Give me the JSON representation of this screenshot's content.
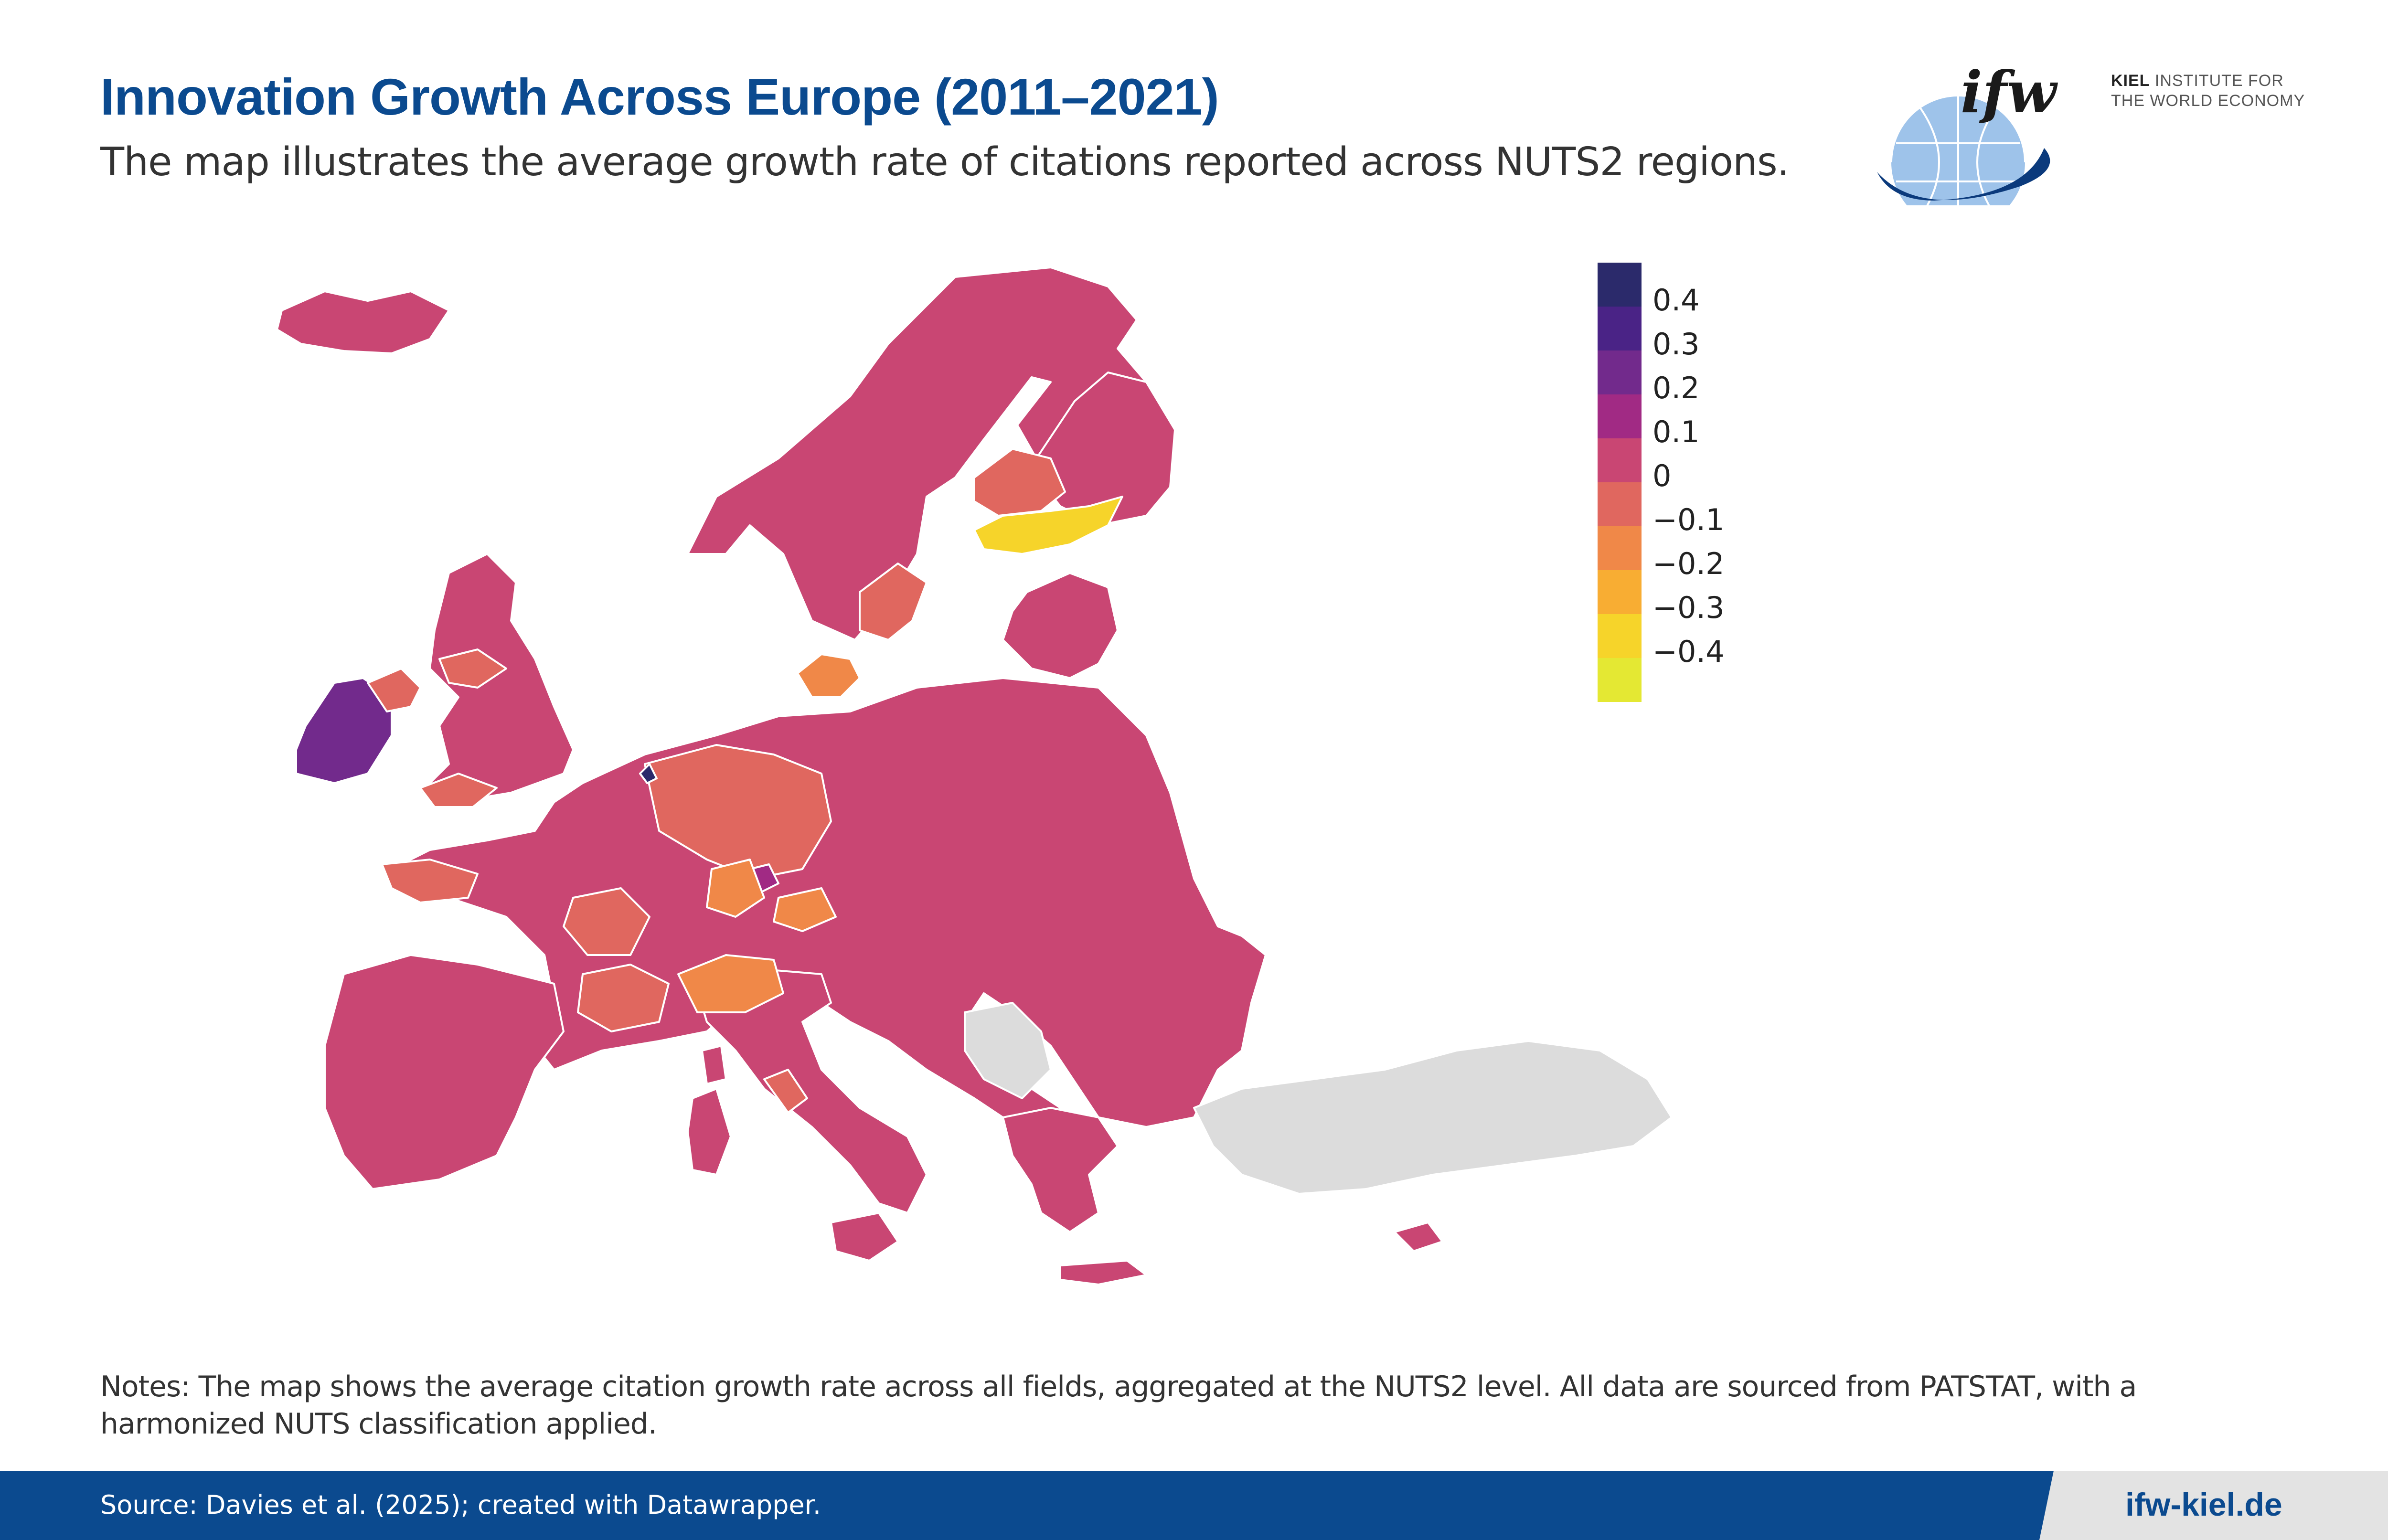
{
  "header": {
    "title": "Innovation Growth Across Europe (2011–2021)",
    "subtitle": "The map illustrates the average growth rate of citations reported across NUTS2 regions."
  },
  "logo": {
    "mark": "ifw",
    "line1_bold": "KIEL",
    "line1_rest": "INSTITUTE FOR",
    "line2": "THE WORLD ECONOMY",
    "icon": "globe-icon"
  },
  "legend": {
    "items": [
      {
        "label": "0.4",
        "color": "#2b2a6b"
      },
      {
        "label": "0.3",
        "color": "#4a2386"
      },
      {
        "label": "0.2",
        "color": "#722a8c"
      },
      {
        "label": "0.1",
        "color": "#a12a84"
      },
      {
        "label": "0",
        "color": "#c94673"
      },
      {
        "label": "−0.1",
        "color": "#e0675f"
      },
      {
        "label": "−0.2",
        "color": "#f08848"
      },
      {
        "label": "−0.3",
        "color": "#f8ad33"
      },
      {
        "label": "−0.4",
        "color": "#f6d42a"
      },
      {
        "label": "",
        "color": "#e4e833"
      }
    ],
    "no_data_color": "#dcdcdc"
  },
  "map": {
    "regions_shown": [
      {
        "name": "Iceland",
        "value": 0
      },
      {
        "name": "Norway",
        "value": 0
      },
      {
        "name": "Sweden",
        "value": 0
      },
      {
        "name": "Finland",
        "value": 0
      },
      {
        "name": "Finland (central)",
        "value": -0.1
      },
      {
        "name": "Finland (south)",
        "value": -0.4
      },
      {
        "name": "Sweden (south-east)",
        "value": -0.1
      },
      {
        "name": "Denmark",
        "value": -0.2
      },
      {
        "name": "Ireland",
        "value": 0.2
      },
      {
        "name": "Northern Ireland",
        "value": -0.1
      },
      {
        "name": "United Kingdom",
        "value": 0
      },
      {
        "name": "Netherlands (region)",
        "value": 0.4
      },
      {
        "name": "Baltic states",
        "value": 0
      },
      {
        "name": "Germany",
        "value": -0.1
      },
      {
        "name": "Brittany",
        "value": -0.1
      },
      {
        "name": "France",
        "value": 0
      },
      {
        "name": "Rhône-Alpes",
        "value": -0.1
      },
      {
        "name": "Bavaria (region)",
        "value": 0.1
      },
      {
        "name": "Austria / Bavaria",
        "value": -0.2
      },
      {
        "name": "Northern Italy",
        "value": -0.2
      },
      {
        "name": "Tuscany",
        "value": -0.1
      },
      {
        "name": "Iberian Peninsula",
        "value": 0
      },
      {
        "name": "Italy",
        "value": 0
      },
      {
        "name": "Poland",
        "value": 0
      },
      {
        "name": "Romania",
        "value": 0
      },
      {
        "name": "Bulgaria",
        "value": 0
      },
      {
        "name": "Greece",
        "value": 0
      },
      {
        "name": "Cyprus",
        "value": 0
      },
      {
        "name": "Serbia",
        "value": null
      },
      {
        "name": "Türkiye",
        "value": null
      }
    ]
  },
  "notes": "Notes: The map shows the average citation growth rate across all fields, aggregated at the NUTS2 level. All data are sourced from PATSTAT, with a harmonized NUTS classification applied.",
  "footer": {
    "source": "Source: Davies et al. (2025); created with Datawrapper.",
    "site": "ifw-kiel.de"
  }
}
